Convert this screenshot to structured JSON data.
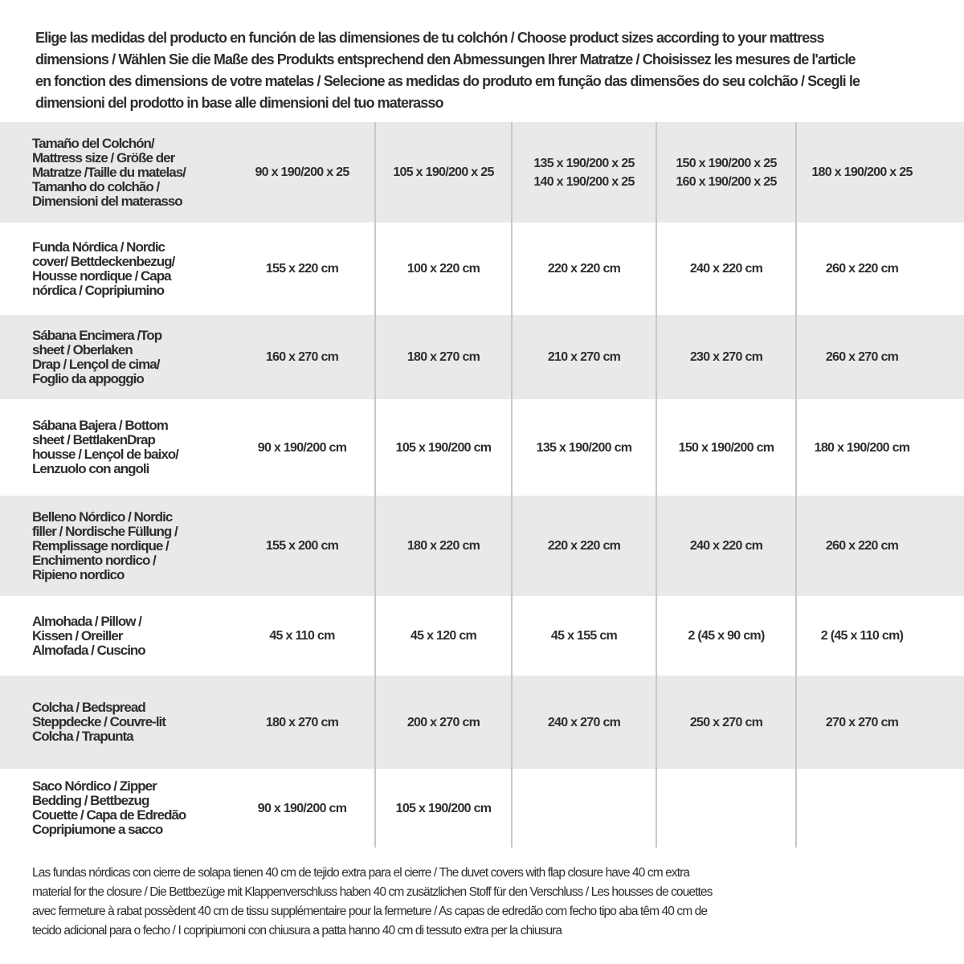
{
  "intro": "Elige las medidas del producto en función de las dimensiones de tu colchón / Choose product sizes according to your mattress\ndimensions / Wählen Sie die Maße des Produkts entsprechend den Abmessungen Ihrer Matratze / Choisissez les mesures de l'article\nen fonction des dimensions de votre matelas / Selecione as medidas do produto em função das dimensões do seu colchão / Scegli le\ndimensioni del prodotto in base alle dimensioni del tuo materasso",
  "rows": [
    {
      "label": "Tamaño del Colchón/\nMattress size / Größe der\nMatratze /Taille du matelas/\nTamanho do colchão /\nDimensioni del materasso",
      "cells": [
        "90 x 190/200 x 25",
        "105 x 190/200 x 25",
        "135 x 190/200 x 25\n140 x 190/200 x 25",
        "150 x 190/200 x 25\n160 x 190/200 x 25",
        "180 x 190/200 x 25"
      ]
    },
    {
      "label": "Funda Nórdica /  Nordic\ncover/ Bettdeckenbezug/\nHousse nordique  / Capa\nnórdica / Copripiumino",
      "cells": [
        "155 x 220 cm",
        "100 x 220 cm",
        "220 x 220 cm",
        "240 x 220 cm",
        "260 x 220 cm"
      ]
    },
    {
      "label": "Sábana Encimera /Top\nsheet / Oberlaken\nDrap / Lençol de cima/\nFoglio da appoggio",
      "cells": [
        "160 x 270 cm",
        "180 x 270 cm",
        "210 x 270 cm",
        "230 x 270 cm",
        "260 x 270 cm"
      ]
    },
    {
      "label": "Sábana Bajera / Bottom\nsheet / BettlakenDrap\nhousse / Lençol de baixo/\nLenzuolo con angoli",
      "cells": [
        "90 x 190/200 cm",
        "105 x 190/200 cm",
        "135 x 190/200 cm",
        "150 x 190/200 cm",
        "180 x 190/200 cm"
      ]
    },
    {
      "label": "Belleno Nórdico / Nordic\nfiller / Nordische Füllung /\nRemplissage nordique /\nEnchimento nordico /\nRipieno nordico",
      "cells": [
        "155 x 200 cm",
        "180 x 220 cm",
        "220 x 220 cm",
        "240 x 220 cm",
        "260 x 220 cm"
      ]
    },
    {
      "label": "Almohada  / Pillow /\nKissen / Oreiller\nAlmofada / Cuscino",
      "cells": [
        "45 x 110 cm",
        "45 x 120 cm",
        "45 x 155 cm",
        "2 (45 x 90 cm)",
        "2 (45 x 110 cm)"
      ]
    },
    {
      "label": "Colcha / Bedspread\nSteppdecke / Couvre-lit\nColcha / Trapunta",
      "cells": [
        "180 x 270 cm",
        "200 x 270 cm",
        "240 x 270 cm",
        "250 x 270 cm",
        "270 x 270 cm"
      ]
    },
    {
      "label": "Saco Nórdico / Zipper\nBedding / Bettbezug\nCouette  / Capa de Edredão\nCopripiumone a sacco",
      "cells": [
        "90 x 190/200 cm",
        "105 x 190/200 cm",
        "",
        "",
        ""
      ]
    }
  ],
  "footnote": "Las fundas nórdicas con cierre de solapa tienen 40 cm de tejido extra para el cierre  / The duvet covers with flap closure have 40 cm extra\nmaterial for the closure / Die Bettbezüge mit Klappenverschluss haben 40 cm zusätzlichen Stoff für den Verschluss / Les housses de couettes\navec fermeture à rabat possèdent 40 cm de tissu supplémentaire pour la fermeture / As capas de edredão com fecho tipo aba têm 40 cm de\ntecido adicional para o fecho / I copripiumoni con chiusura a patta hanno 40 cm di tessuto extra per la chiusura",
  "colors": {
    "band": "#e9e9eb",
    "text": "#2e2e2e",
    "divider": "#c8c8ca"
  }
}
